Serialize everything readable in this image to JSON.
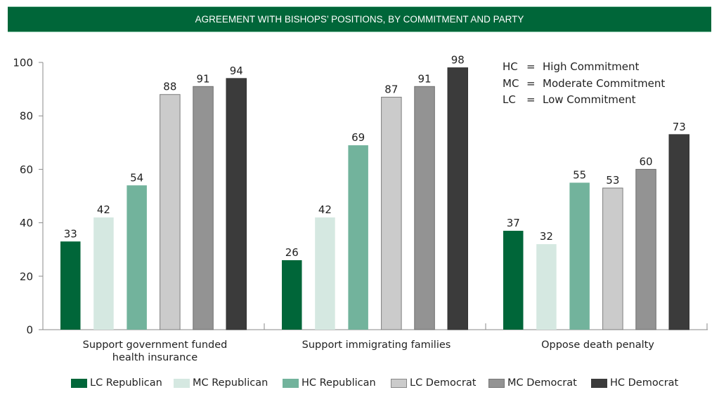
{
  "banner": {
    "title": "AGREEMENT WITH BISHOPS’ POSITIONS, BY COMMITMENT AND PARTY"
  },
  "abbreviations": [
    {
      "key": "HC",
      "eq": "=",
      "meaning": "High Commitment"
    },
    {
      "key": "MC",
      "eq": "=",
      "meaning": "Moderate Commitment"
    },
    {
      "key": "LC",
      "eq": "=",
      "meaning": "Low Commitment"
    }
  ],
  "colors": {
    "lc_republican": "#006639",
    "mc_republican": "#d5e8e1",
    "hc_republican": "#72b39c",
    "lc_democrat": "#cbcbcb",
    "mc_democrat": "#939393",
    "hc_democrat": "#3b3b3b",
    "banner": "#006639"
  },
  "chart_data": {
    "type": "bar",
    "title": "AGREEMENT WITH BISHOPS’ POSITIONS, BY COMMITMENT AND PARTY",
    "xlabel": "",
    "ylabel": "",
    "ylim": [
      0,
      100
    ],
    "yticks": [
      "0",
      "20",
      "40",
      "60",
      "80",
      "100"
    ],
    "grid": false,
    "legend_position": "bottom",
    "categories": [
      [
        "Support government funded",
        "health insurance"
      ],
      [
        "Support immigrating families"
      ],
      [
        "Oppose death penalty"
      ]
    ],
    "series": [
      {
        "name": "LC Republican",
        "color": "#006639",
        "values": [
          33,
          26,
          37
        ]
      },
      {
        "name": "MC Republican",
        "color": "#d5e8e1",
        "values": [
          42,
          42,
          32
        ]
      },
      {
        "name": "HC Republican",
        "color": "#72b39c",
        "values": [
          54,
          69,
          55
        ]
      },
      {
        "name": "LC Democrat",
        "color": "#cbcbcb",
        "values": [
          88,
          87,
          53
        ]
      },
      {
        "name": "MC Democrat",
        "color": "#939393",
        "values": [
          91,
          91,
          60
        ]
      },
      {
        "name": "HC Democrat",
        "color": "#3b3b3b",
        "values": [
          94,
          98,
          73
        ]
      }
    ]
  }
}
